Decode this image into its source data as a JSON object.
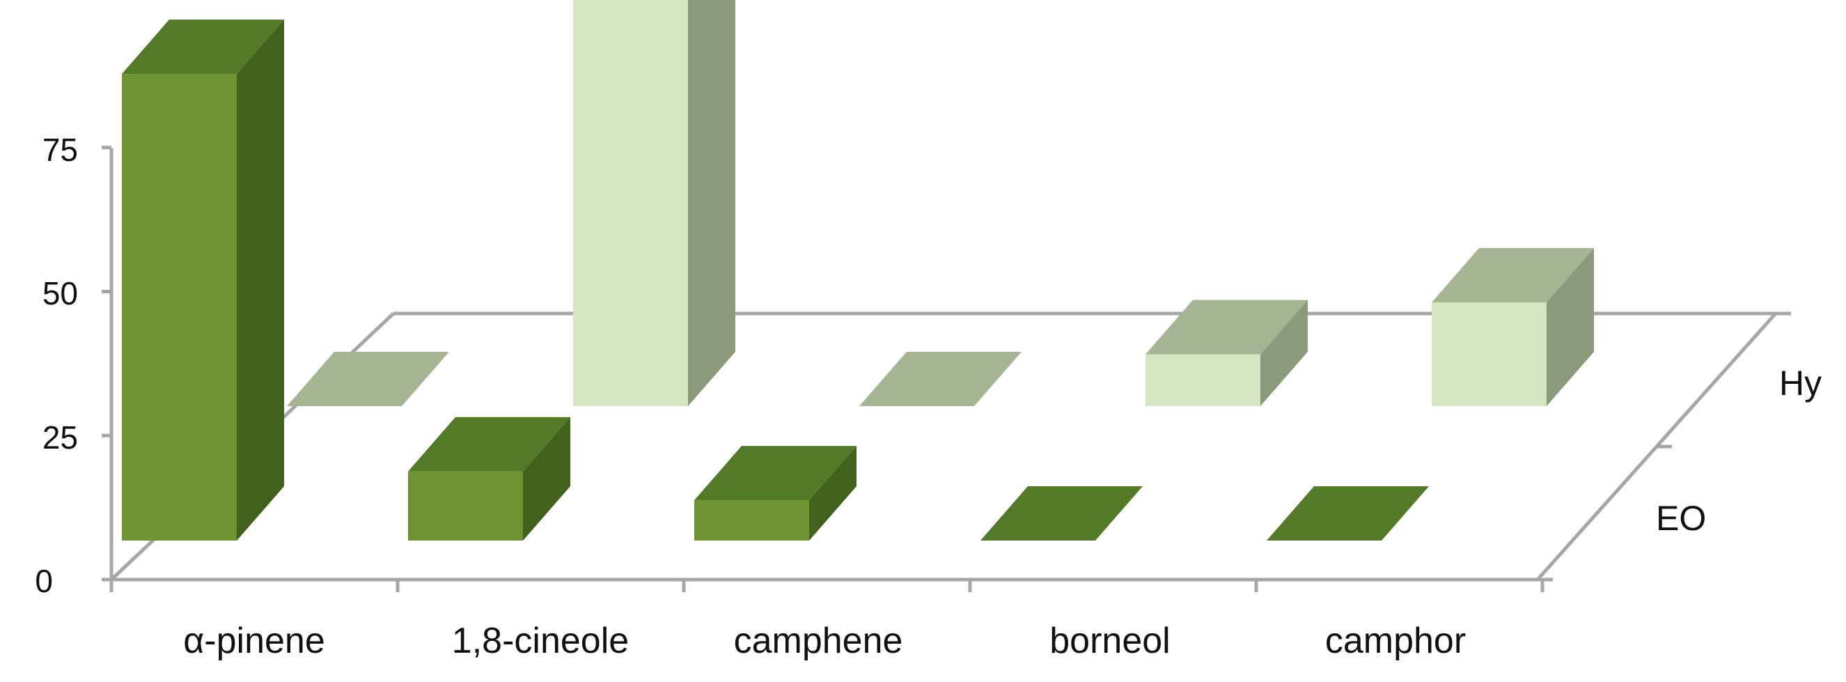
{
  "chart_data": {
    "type": "bar",
    "categories": [
      "α-pinene",
      "1,8-cineole",
      "camphene",
      "borneol",
      "camphor"
    ],
    "series": [
      {
        "name": "EO",
        "values": [
          81,
          12,
          7,
          0,
          0
        ]
      },
      {
        "name": "Hy",
        "values": [
          0,
          79,
          0,
          9,
          18
        ]
      }
    ],
    "ylim": [
      0,
      75
    ],
    "yticks": [
      "0",
      "25",
      "50",
      "75"
    ],
    "title": "",
    "xlabel": "",
    "ylabel": "",
    "legend": "depth-axis",
    "grid": false
  },
  "colors": {
    "eo_front": "#6e9432",
    "eo_top": "#527a27",
    "eo_side": "#41621c",
    "hy_front": "#d3e6bf",
    "hy_top": "#a5b493",
    "hy_side": "#8b9a7b",
    "axis": "#a6a6a6"
  }
}
